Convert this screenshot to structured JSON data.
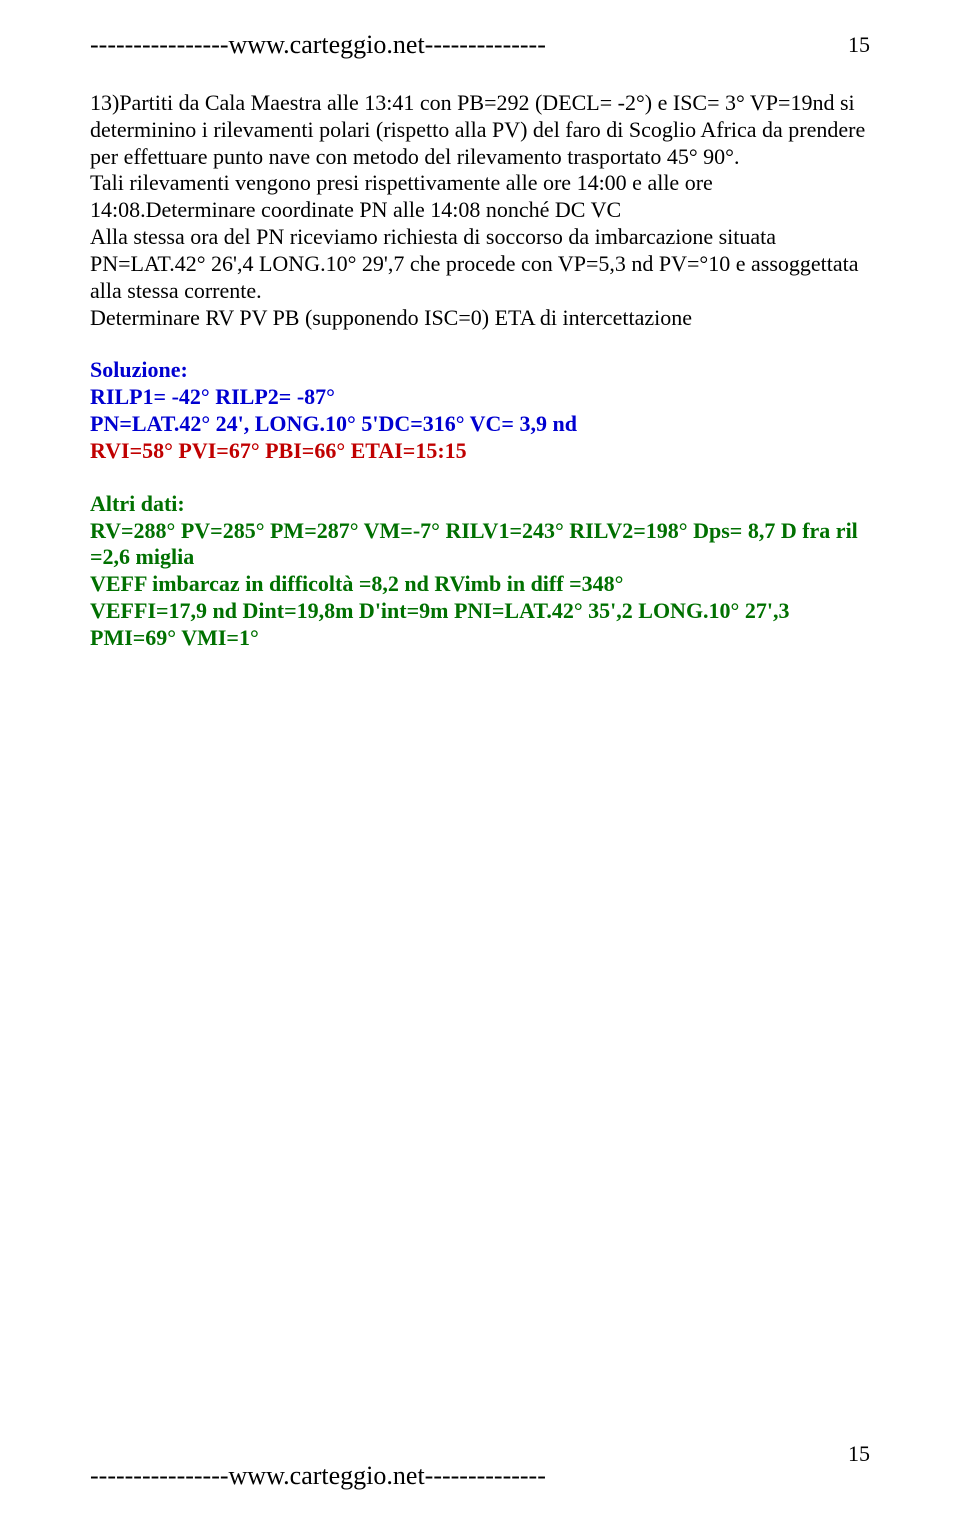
{
  "header": {
    "line": "----------------www.carteggio.net--------------",
    "page_num_top": "15"
  },
  "problem": {
    "p1": "13)Partiti da Cala Maestra alle 13:41 con PB=292 (DECL= -2°) e ISC= 3° VP=19nd si determinino i rilevamenti polari (rispetto alla PV) del faro di Scoglio Africa da prendere per effettuare punto nave con metodo del rilevamento trasportato 45° 90°.",
    "p2": "Tali rilevamenti vengono presi rispettivamente alle ore 14:00 e alle ore 14:08.Determinare coordinate PN alle 14:08  nonché DC VC",
    "p3": "Alla stessa ora del PN riceviamo richiesta di soccorso da imbarcazione situata PN=LAT.42° 26',4 LONG.10° 29',7 che procede con VP=5,3 nd PV=°10 e assoggettata alla stessa corrente.",
    "p4": "Determinare RV PV PB (supponendo ISC=0) ETA di intercettazione"
  },
  "solution": {
    "label": "Soluzione:",
    "l1": "RILP1= -42° RILP2= -87°",
    "l2": "PN=LAT.42° 24', LONG.10° 5'DC=316° VC= 3,9 nd",
    "l3": "RVI=58° PVI=67° PBI=66°   ETAI=15:15"
  },
  "altri": {
    "label": "Altri dati:",
    "l1": "RV=288° PV=285° PM=287° VM=-7° RILV1=243° RILV2=198° Dps= 8,7 D fra ril =2,6 miglia",
    "l2": "VEFF imbarcaz in difficoltà =8,2 nd  RVimb in diff =348°",
    "l3": "VEFFI=17,9 nd Dint=19,8m D'int=9m PNI=LAT.42° 35',2 LONG.10° 27',3 PMI=69° VMI=1°"
  },
  "footer": {
    "line": "----------------www.carteggio.net--------------",
    "page_num_bottom": "15"
  }
}
